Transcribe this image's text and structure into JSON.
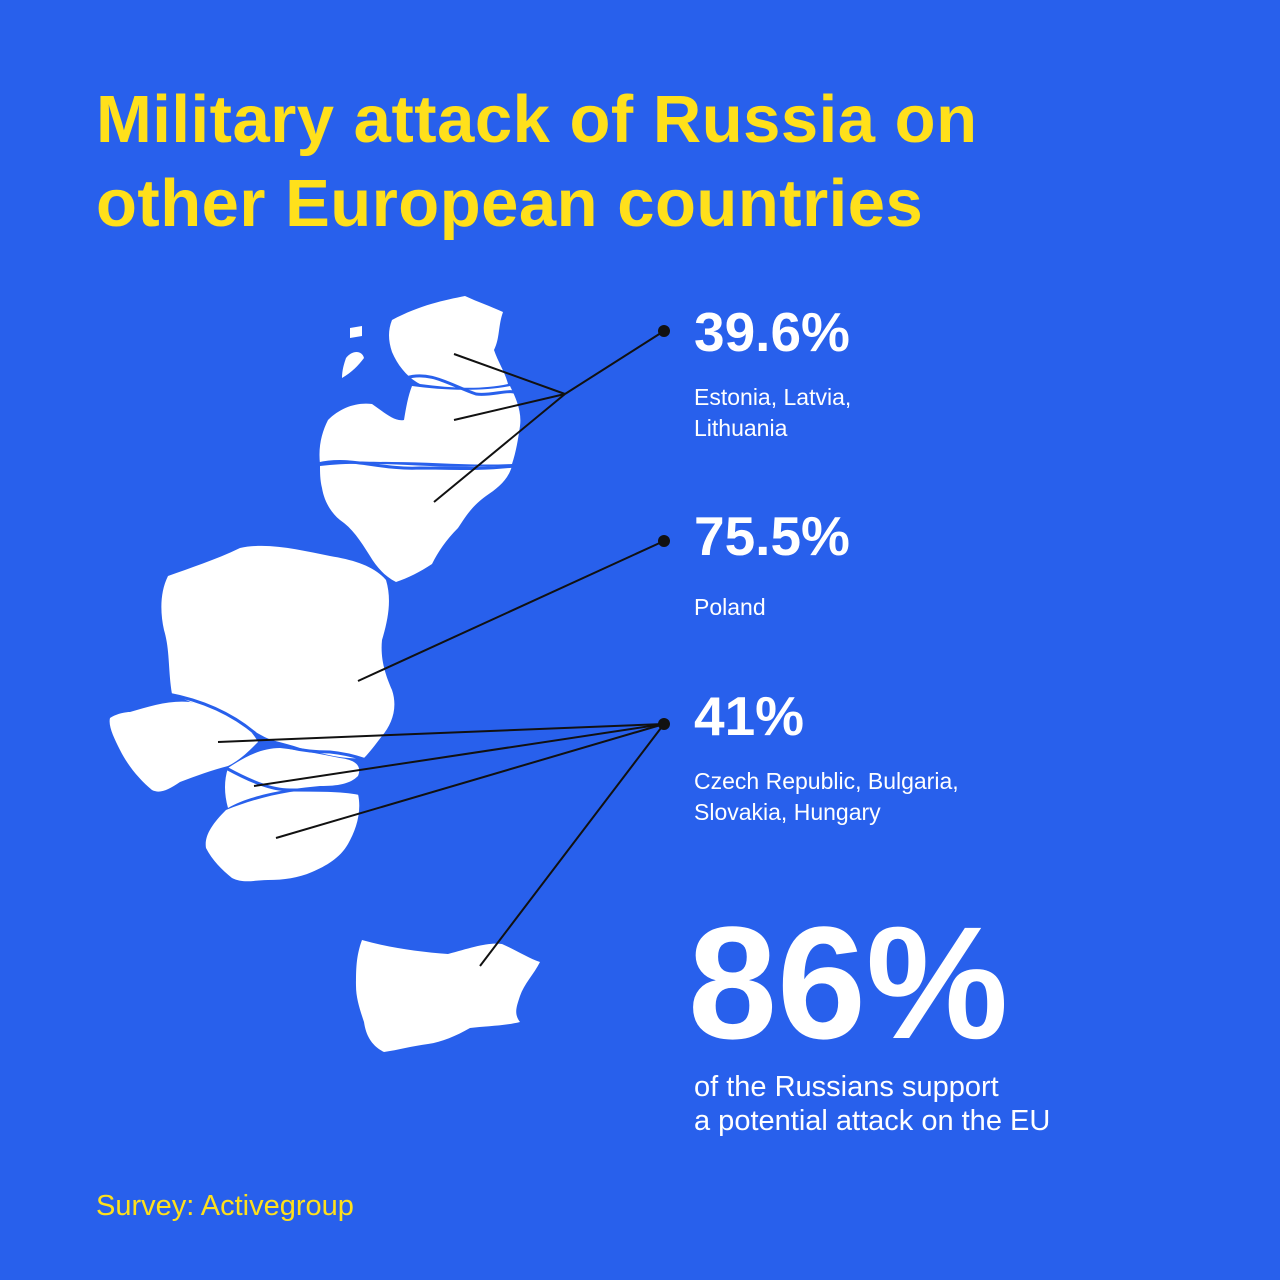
{
  "title": {
    "line1": "Military attack of Russia on",
    "line2": "other European countries"
  },
  "stats": [
    {
      "value": "39.6%",
      "label": "Estonia, Latvia,\nLithuania"
    },
    {
      "value": "75.5%",
      "label": "Poland"
    },
    {
      "value": "41%",
      "label": "Czech Republic, Bulgaria,\nSlovakia, Hungary"
    }
  ],
  "highlight": {
    "value": "86%",
    "caption": "of the Russians support\na potential attack on the EU"
  },
  "source": "Survey: Activegroup",
  "colors": {
    "background": "#2860ec",
    "title": "#ffe01b",
    "text": "#ffffff",
    "map": "#ffffff",
    "leader_lines": "#111111"
  }
}
